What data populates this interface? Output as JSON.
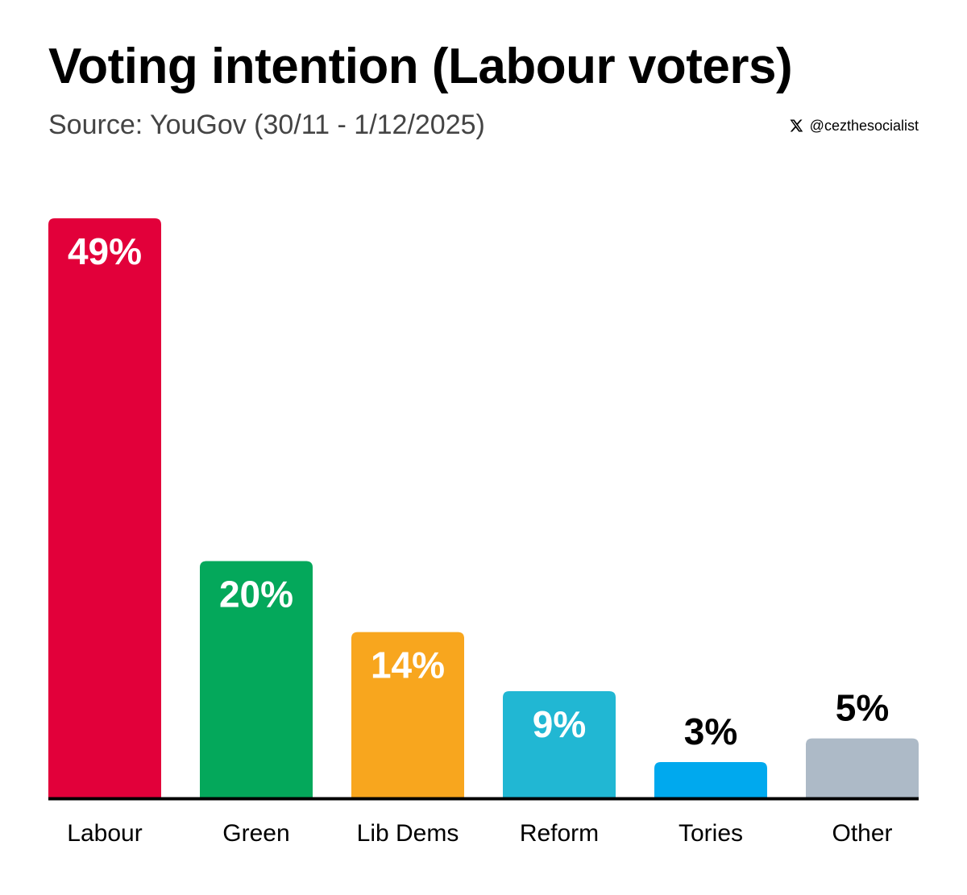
{
  "chart_data": {
    "type": "bar",
    "title": "Voting intention (Labour voters)",
    "subtitle": "Source: YouGov (30/11 - 1/12/2025)",
    "credit": "@cezthesocialist",
    "credit_icon": "x-logo-icon",
    "categories": [
      "Labour",
      "Green",
      "Lib Dems",
      "Reform",
      "Tories",
      "Other"
    ],
    "values": [
      49,
      20,
      14,
      9,
      3,
      5
    ],
    "value_labels": [
      "49%",
      "20%",
      "14%",
      "9%",
      "3%",
      "5%"
    ],
    "colors": [
      "#e2003a",
      "#04a85b",
      "#f8a61e",
      "#21b7d3",
      "#00a9ee",
      "#adbac7"
    ],
    "label_colors": [
      "#ffffff",
      "#ffffff",
      "#ffffff",
      "#ffffff",
      "#000000",
      "#000000"
    ],
    "label_inside": [
      true,
      true,
      true,
      true,
      false,
      false
    ],
    "ylim": [
      0,
      49
    ],
    "grid": false,
    "legend": "none"
  }
}
